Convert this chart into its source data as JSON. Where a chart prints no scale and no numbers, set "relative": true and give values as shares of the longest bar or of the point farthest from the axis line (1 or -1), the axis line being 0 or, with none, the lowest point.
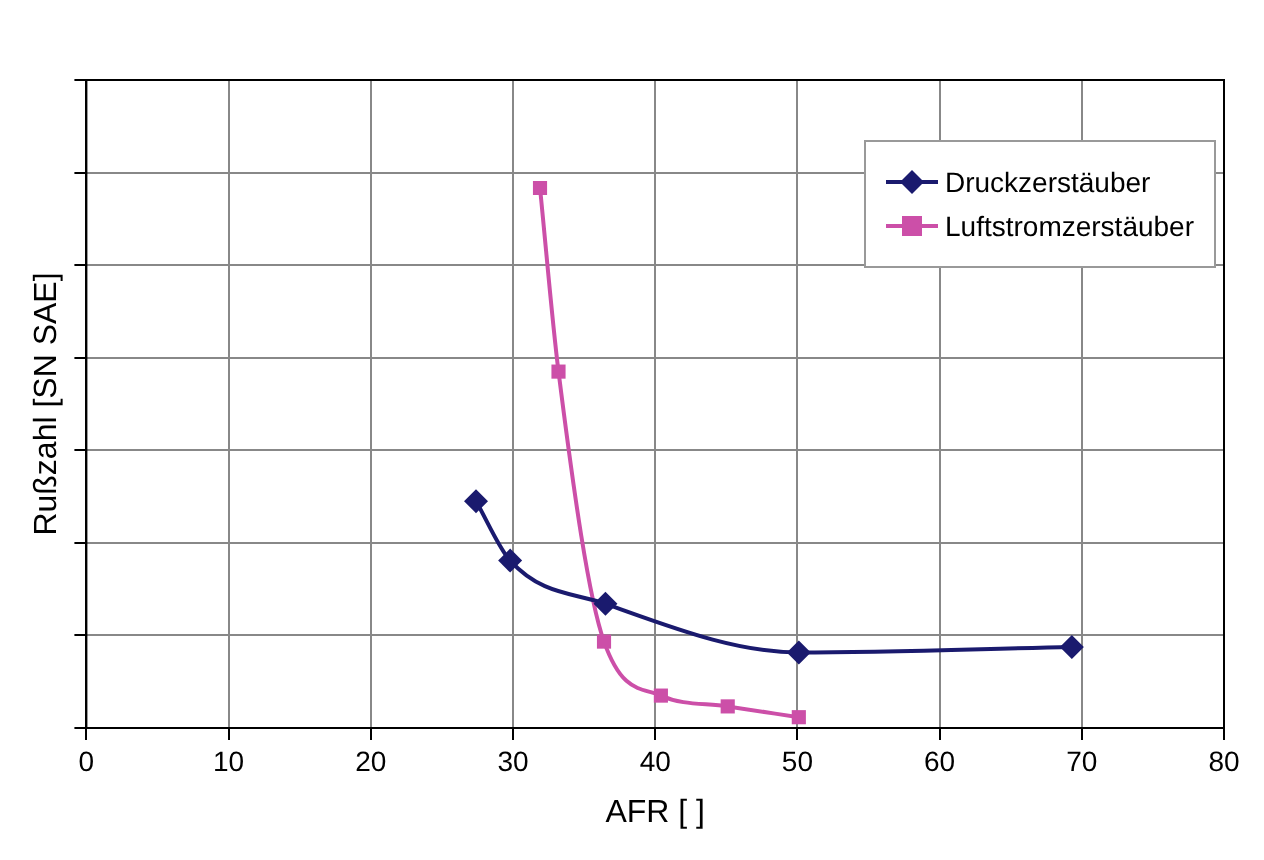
{
  "chart_data": {
    "type": "line",
    "xlabel": "AFR [ ]",
    "ylabel": "Rußzahl [SN SAE]",
    "relative": true,
    "xlim": [
      0,
      80
    ],
    "xticks": [
      0,
      10,
      20,
      30,
      40,
      50,
      60,
      70,
      80
    ],
    "grid": true,
    "legend": "top right",
    "line_style": "solid",
    "series": [
      {
        "name": "Druckzerstäuber",
        "color": "#1a1a6e",
        "marker": "diamond",
        "x": [
          27.4,
          29.8,
          36.5,
          50.1,
          69.3
        ],
        "values": [
          0.42,
          0.31,
          0.23,
          0.14,
          0.15
        ]
      },
      {
        "name": "Luftstromzerstäuber",
        "color": "#cc4fa8",
        "marker": "square",
        "x": [
          31.9,
          33.2,
          36.4,
          40.4,
          45.1,
          50.1
        ],
        "values": [
          1,
          0.66,
          0.16,
          0.06,
          0.04,
          0.02
        ]
      }
    ]
  }
}
